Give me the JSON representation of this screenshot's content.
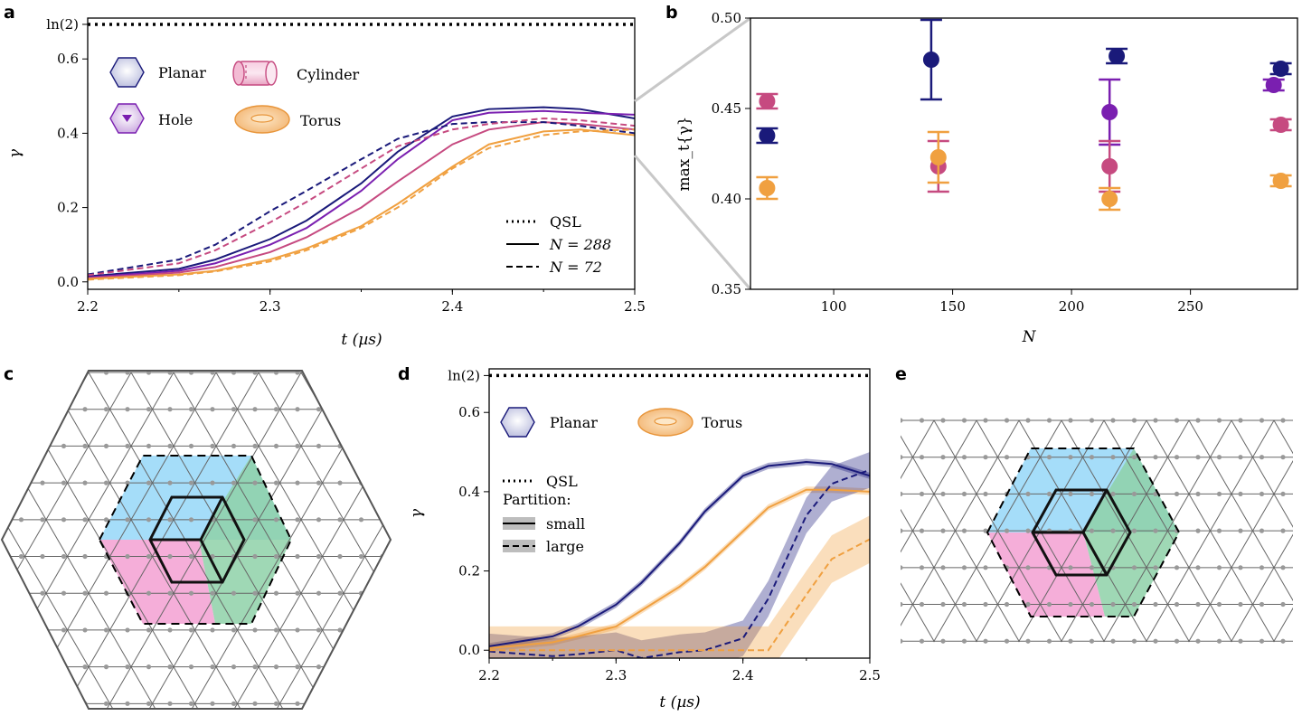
{
  "panels": {
    "a": "a",
    "b": "b",
    "c": "c",
    "d": "d",
    "e": "e"
  },
  "colors": {
    "planar": "#1a1a7a",
    "hole": "#7a1fb0",
    "cylinder": "#c64a80",
    "torus": "#f0a040",
    "blue_region": "#8fd4f7",
    "green_region": "#8ed1a8",
    "pink_region": "#f3a0d2",
    "lattice": "#666666"
  },
  "chart_data": [
    {
      "type": "line",
      "panel": "a",
      "xlabel": "t (µs)",
      "ylabel": "γ",
      "xlim": [
        2.2,
        2.5
      ],
      "ylim": [
        -0.02,
        0.71
      ],
      "xticks": [
        "2.2",
        "2.3",
        "2.4",
        "2.5"
      ],
      "yticks": [
        "0.0",
        "0.2",
        "0.4",
        "0.6",
        "ln(2)"
      ],
      "ytick_values": [
        0,
        0.2,
        0.4,
        0.6,
        0.6931
      ],
      "reference_line": {
        "label": "QSL",
        "y": 0.6931
      },
      "legend_shapes": [
        {
          "label": "Planar",
          "icon": "hexagon-icon"
        },
        {
          "label": "Cylinder",
          "icon": "cylinder-icon"
        },
        {
          "label": "Hole",
          "icon": "hexagon-hole-icon"
        },
        {
          "label": "Torus",
          "icon": "torus-icon"
        }
      ],
      "legend_styles": [
        {
          "label": "QSL",
          "style": "dotted"
        },
        {
          "label": "N = 288",
          "style": "solid"
        },
        {
          "label": "N = 72",
          "style": "dashed"
        }
      ],
      "x": [
        2.2,
        2.25,
        2.27,
        2.3,
        2.32,
        2.35,
        2.37,
        2.4,
        2.42,
        2.45,
        2.47,
        2.5
      ],
      "series": [
        {
          "group": "Planar",
          "style": "solid",
          "color": "#1a1a7a",
          "values": [
            0.015,
            0.035,
            0.06,
            0.115,
            0.165,
            0.265,
            0.35,
            0.445,
            0.465,
            0.47,
            0.465,
            0.44
          ]
        },
        {
          "group": "Hole",
          "style": "solid",
          "color": "#7a1fb0",
          "values": [
            0.012,
            0.03,
            0.05,
            0.1,
            0.145,
            0.245,
            0.33,
            0.435,
            0.455,
            0.46,
            0.455,
            0.45
          ]
        },
        {
          "group": "Cylinder",
          "style": "solid",
          "color": "#c64a80",
          "values": [
            0.01,
            0.025,
            0.04,
            0.08,
            0.12,
            0.2,
            0.27,
            0.37,
            0.41,
            0.43,
            0.425,
            0.41
          ]
        },
        {
          "group": "Torus",
          "style": "solid",
          "color": "#f0a040",
          "values": [
            0.008,
            0.02,
            0.03,
            0.06,
            0.09,
            0.15,
            0.21,
            0.31,
            0.37,
            0.405,
            0.41,
            0.395
          ]
        },
        {
          "group": "Planar",
          "style": "dashed",
          "color": "#1a1a7a",
          "values": [
            0.02,
            0.06,
            0.1,
            0.19,
            0.245,
            0.33,
            0.385,
            0.425,
            0.43,
            0.43,
            0.42,
            0.4
          ]
        },
        {
          "group": "Cylinder",
          "style": "dashed",
          "color": "#c64a80",
          "values": [
            0.018,
            0.05,
            0.085,
            0.16,
            0.215,
            0.305,
            0.365,
            0.41,
            0.425,
            0.44,
            0.435,
            0.42
          ]
        },
        {
          "group": "Torus",
          "style": "dashed",
          "color": "#f0a040",
          "values": [
            0.006,
            0.018,
            0.028,
            0.055,
            0.085,
            0.145,
            0.2,
            0.305,
            0.36,
            0.395,
            0.405,
            0.41
          ]
        }
      ]
    },
    {
      "type": "scatter",
      "panel": "b",
      "xlabel": "N",
      "ylabel": "max_t{γ}",
      "xlim": [
        65,
        295
      ],
      "ylim": [
        0.35,
        0.5
      ],
      "xticks": [
        "100",
        "150",
        "200",
        "250"
      ],
      "xtick_values": [
        100,
        150,
        200,
        250
      ],
      "yticks": [
        "0.35",
        "0.40",
        "0.45",
        "0.50"
      ],
      "ytick_values": [
        0.35,
        0.4,
        0.45,
        0.5
      ],
      "points": [
        {
          "group": "Planar",
          "color": "#1a1a7a",
          "x": 72,
          "y": 0.435,
          "err": 0.004
        },
        {
          "group": "Cylinder",
          "color": "#c64a80",
          "x": 72,
          "y": 0.454,
          "err": 0.004
        },
        {
          "group": "Torus",
          "color": "#f0a040",
          "x": 72,
          "y": 0.406,
          "err": 0.006
        },
        {
          "group": "Planar",
          "color": "#1a1a7a",
          "x": 141,
          "y": 0.477,
          "err": 0.022
        },
        {
          "group": "Cylinder",
          "color": "#c64a80",
          "x": 144,
          "y": 0.418,
          "err": 0.014
        },
        {
          "group": "Torus",
          "color": "#f0a040",
          "x": 144,
          "y": 0.423,
          "err": 0.014
        },
        {
          "group": "Planar",
          "color": "#1a1a7a",
          "x": 219,
          "y": 0.479,
          "err": 0.004
        },
        {
          "group": "Hole",
          "color": "#7a1fb0",
          "x": 216,
          "y": 0.448,
          "err": 0.018
        },
        {
          "group": "Cylinder",
          "color": "#c64a80",
          "x": 216,
          "y": 0.418,
          "err": 0.014
        },
        {
          "group": "Torus",
          "color": "#f0a040",
          "x": 216,
          "y": 0.4,
          "err": 0.006
        },
        {
          "group": "Planar",
          "color": "#1a1a7a",
          "x": 288,
          "y": 0.472,
          "err": 0.003
        },
        {
          "group": "Hole",
          "color": "#7a1fb0",
          "x": 285,
          "y": 0.463,
          "err": 0.003
        },
        {
          "group": "Cylinder",
          "color": "#c64a80",
          "x": 288,
          "y": 0.441,
          "err": 0.003
        },
        {
          "group": "Torus",
          "color": "#f0a040",
          "x": 288,
          "y": 0.41,
          "err": 0.003
        }
      ]
    },
    {
      "type": "line",
      "panel": "d",
      "xlabel": "t (µs)",
      "ylabel": "γ",
      "xlim": [
        2.2,
        2.5
      ],
      "ylim": [
        -0.02,
        0.71
      ],
      "xticks": [
        "2.2",
        "2.3",
        "2.4",
        "2.5"
      ],
      "yticks": [
        "0.0",
        "0.2",
        "0.4",
        "0.6",
        "ln(2)"
      ],
      "ytick_values": [
        0,
        0.2,
        0.4,
        0.6,
        0.6931
      ],
      "reference_line": {
        "label": "QSL",
        "y": 0.6931
      },
      "legend_shapes": [
        {
          "label": "Planar",
          "icon": "hexagon-icon"
        },
        {
          "label": "Torus",
          "icon": "torus-icon"
        }
      ],
      "legend_styles": [
        {
          "label": "QSL",
          "style": "dotted"
        },
        {
          "label": "Partition:",
          "style": "title"
        },
        {
          "label": "small",
          "style": "solid"
        },
        {
          "label": "large",
          "style": "dashed"
        }
      ],
      "x": [
        2.2,
        2.25,
        2.27,
        2.3,
        2.32,
        2.35,
        2.37,
        2.4,
        2.42,
        2.45,
        2.47,
        2.5
      ],
      "series": [
        {
          "group": "Planar",
          "style": "solid",
          "color": "#1a1a7a",
          "values": [
            0.01,
            0.035,
            0.06,
            0.115,
            0.17,
            0.27,
            0.35,
            0.44,
            0.465,
            0.475,
            0.47,
            0.44
          ],
          "band": 0.008
        },
        {
          "group": "Torus",
          "style": "solid",
          "color": "#f0a040",
          "values": [
            0.005,
            0.02,
            0.035,
            0.06,
            0.1,
            0.16,
            0.21,
            0.3,
            0.36,
            0.405,
            0.405,
            0.4
          ],
          "band": 0.008
        },
        {
          "group": "Planar",
          "style": "dashed",
          "color": "#1a1a7a",
          "values": [
            -0.003,
            -0.015,
            -0.01,
            0.0,
            -0.02,
            -0.005,
            0.0,
            0.03,
            0.13,
            0.34,
            0.42,
            0.455
          ],
          "band": 0.045
        },
        {
          "group": "Torus",
          "style": "dashed",
          "color": "#f0a040",
          "values": [
            0.0,
            0.0,
            0.0,
            0.0,
            0.0,
            0.0,
            0.0,
            0.0,
            0.0,
            0.14,
            0.23,
            0.28
          ],
          "band": 0.06
        }
      ]
    }
  ]
}
